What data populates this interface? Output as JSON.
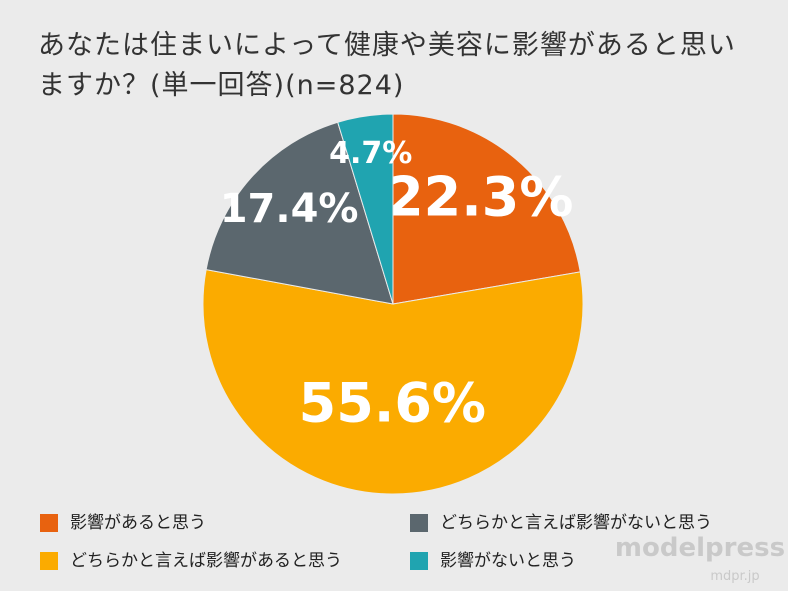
{
  "chart_data": {
    "type": "pie",
    "title": "あなたは住まいによって健康や美容に影響があると思いますか？(単一回答)(n=824)",
    "categories": [
      "影響があると思う",
      "どちらかと言えば影響があると思う",
      "どちらかと言えば影響がないと思う",
      "影響がないと思う"
    ],
    "values": [
      22.3,
      55.6,
      17.4,
      4.7
    ],
    "value_labels": [
      "22.3%",
      "55.6%",
      "17.4%",
      "4.7%"
    ],
    "colors": [
      "#e8620f",
      "#fbab00",
      "#5b676e",
      "#20a4b0"
    ]
  },
  "watermark": {
    "brand": "modelpress",
    "url": "mdpr.jp"
  }
}
